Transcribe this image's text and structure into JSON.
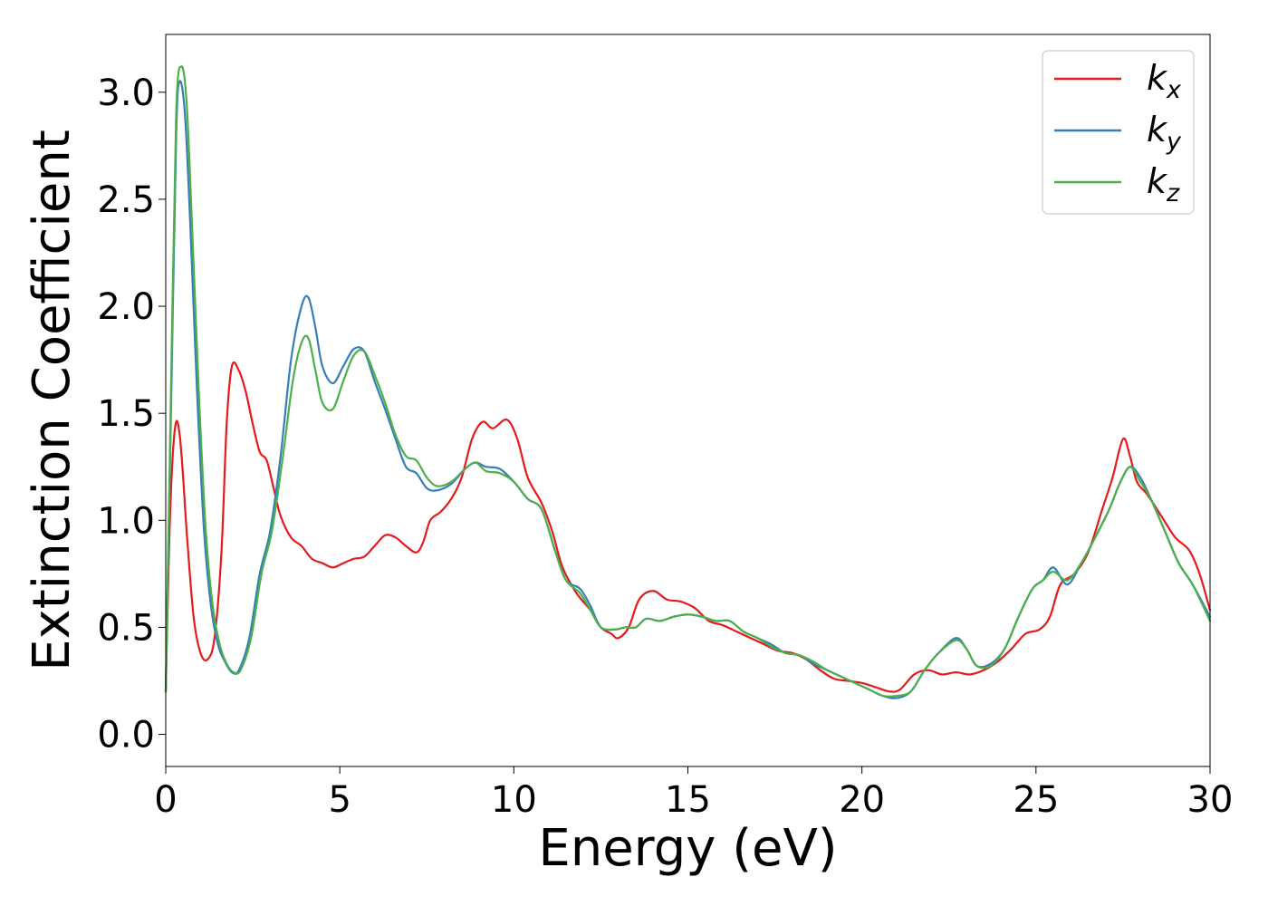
{
  "chart_data": {
    "type": "line",
    "xlabel": "Energy (eV)",
    "ylabel": "Extinction Coefficient",
    "xlim": [
      0,
      30
    ],
    "ylim": [
      -0.15,
      3.27
    ],
    "xticks": [
      0,
      5,
      10,
      15,
      20,
      25,
      30
    ],
    "xtick_labels": [
      "0",
      "5",
      "10",
      "15",
      "20",
      "25",
      "30"
    ],
    "yticks": [
      0.0,
      0.5,
      1.0,
      1.5,
      2.0,
      2.5,
      3.0
    ],
    "ytick_labels": [
      "0.0",
      "0.5",
      "1.0",
      "1.5",
      "2.0",
      "2.5",
      "3.0"
    ],
    "grid": false,
    "legend_position": "top-right",
    "series": [
      {
        "name": "k_x",
        "label_base": "k",
        "label_sub": "x",
        "color": "#e41a1c",
        "points": [
          [
            0,
            0.2
          ],
          [
            0.1,
            0.9
          ],
          [
            0.2,
            1.3
          ],
          [
            0.3,
            1.46
          ],
          [
            0.4,
            1.4
          ],
          [
            0.5,
            1.2
          ],
          [
            0.6,
            0.95
          ],
          [
            0.8,
            0.55
          ],
          [
            1.0,
            0.38
          ],
          [
            1.2,
            0.35
          ],
          [
            1.4,
            0.45
          ],
          [
            1.6,
            0.85
          ],
          [
            1.75,
            1.45
          ],
          [
            1.9,
            1.72
          ],
          [
            2.1,
            1.7
          ],
          [
            2.3,
            1.6
          ],
          [
            2.5,
            1.45
          ],
          [
            2.7,
            1.32
          ],
          [
            2.9,
            1.28
          ],
          [
            3.1,
            1.15
          ],
          [
            3.3,
            1.02
          ],
          [
            3.6,
            0.92
          ],
          [
            3.9,
            0.88
          ],
          [
            4.2,
            0.82
          ],
          [
            4.5,
            0.8
          ],
          [
            4.8,
            0.78
          ],
          [
            5.1,
            0.8
          ],
          [
            5.4,
            0.82
          ],
          [
            5.7,
            0.83
          ],
          [
            6.0,
            0.88
          ],
          [
            6.3,
            0.93
          ],
          [
            6.6,
            0.92
          ],
          [
            6.9,
            0.88
          ],
          [
            7.2,
            0.85
          ],
          [
            7.4,
            0.9
          ],
          [
            7.6,
            1.0
          ],
          [
            7.9,
            1.04
          ],
          [
            8.2,
            1.1
          ],
          [
            8.5,
            1.2
          ],
          [
            8.8,
            1.38
          ],
          [
            9.1,
            1.46
          ],
          [
            9.4,
            1.43
          ],
          [
            9.8,
            1.47
          ],
          [
            10.1,
            1.38
          ],
          [
            10.4,
            1.2
          ],
          [
            10.8,
            1.08
          ],
          [
            11.1,
            0.95
          ],
          [
            11.4,
            0.78
          ],
          [
            11.8,
            0.66
          ],
          [
            12.2,
            0.58
          ],
          [
            12.5,
            0.5
          ],
          [
            12.8,
            0.47
          ],
          [
            13.0,
            0.45
          ],
          [
            13.3,
            0.5
          ],
          [
            13.6,
            0.63
          ],
          [
            14.0,
            0.67
          ],
          [
            14.4,
            0.63
          ],
          [
            14.8,
            0.62
          ],
          [
            15.2,
            0.59
          ],
          [
            15.6,
            0.53
          ],
          [
            16.0,
            0.51
          ],
          [
            16.4,
            0.48
          ],
          [
            16.8,
            0.45
          ],
          [
            17.2,
            0.42
          ],
          [
            17.6,
            0.39
          ],
          [
            18.0,
            0.38
          ],
          [
            18.4,
            0.35
          ],
          [
            18.8,
            0.3
          ],
          [
            19.2,
            0.26
          ],
          [
            19.6,
            0.25
          ],
          [
            20.0,
            0.24
          ],
          [
            20.4,
            0.22
          ],
          [
            20.8,
            0.2
          ],
          [
            21.1,
            0.21
          ],
          [
            21.5,
            0.28
          ],
          [
            21.9,
            0.3
          ],
          [
            22.3,
            0.28
          ],
          [
            22.7,
            0.29
          ],
          [
            23.1,
            0.28
          ],
          [
            23.5,
            0.3
          ],
          [
            23.9,
            0.34
          ],
          [
            24.3,
            0.4
          ],
          [
            24.7,
            0.47
          ],
          [
            25.1,
            0.49
          ],
          [
            25.4,
            0.55
          ],
          [
            25.7,
            0.7
          ],
          [
            26.1,
            0.75
          ],
          [
            26.5,
            0.85
          ],
          [
            26.9,
            1.05
          ],
          [
            27.2,
            1.2
          ],
          [
            27.5,
            1.38
          ],
          [
            27.7,
            1.3
          ],
          [
            27.9,
            1.18
          ],
          [
            28.2,
            1.12
          ],
          [
            28.6,
            1.02
          ],
          [
            29.0,
            0.92
          ],
          [
            29.4,
            0.86
          ],
          [
            29.7,
            0.75
          ],
          [
            30.0,
            0.58
          ]
        ]
      },
      {
        "name": "k_y",
        "label_base": "k",
        "label_sub": "y",
        "color": "#377eb8",
        "points": [
          [
            0,
            0.2
          ],
          [
            0.15,
            1.5
          ],
          [
            0.3,
            2.8
          ],
          [
            0.4,
            3.05
          ],
          [
            0.55,
            2.9
          ],
          [
            0.7,
            2.4
          ],
          [
            0.9,
            1.6
          ],
          [
            1.1,
            0.95
          ],
          [
            1.3,
            0.6
          ],
          [
            1.5,
            0.42
          ],
          [
            1.7,
            0.34
          ],
          [
            1.9,
            0.29
          ],
          [
            2.1,
            0.3
          ],
          [
            2.4,
            0.45
          ],
          [
            2.7,
            0.75
          ],
          [
            3.0,
            0.95
          ],
          [
            3.3,
            1.3
          ],
          [
            3.6,
            1.75
          ],
          [
            3.9,
            2.0
          ],
          [
            4.1,
            2.04
          ],
          [
            4.3,
            1.9
          ],
          [
            4.5,
            1.72
          ],
          [
            4.8,
            1.64
          ],
          [
            5.1,
            1.72
          ],
          [
            5.4,
            1.8
          ],
          [
            5.7,
            1.79
          ],
          [
            6.0,
            1.65
          ],
          [
            6.3,
            1.52
          ],
          [
            6.6,
            1.38
          ],
          [
            6.9,
            1.25
          ],
          [
            7.2,
            1.22
          ],
          [
            7.5,
            1.15
          ],
          [
            7.8,
            1.14
          ],
          [
            8.2,
            1.17
          ],
          [
            8.6,
            1.24
          ],
          [
            8.9,
            1.27
          ],
          [
            9.2,
            1.25
          ],
          [
            9.6,
            1.24
          ],
          [
            10.0,
            1.18
          ],
          [
            10.4,
            1.1
          ],
          [
            10.8,
            1.05
          ],
          [
            11.2,
            0.85
          ],
          [
            11.5,
            0.72
          ],
          [
            11.9,
            0.68
          ],
          [
            12.2,
            0.6
          ],
          [
            12.5,
            0.5
          ],
          [
            12.9,
            0.49
          ],
          [
            13.2,
            0.5
          ],
          [
            13.5,
            0.5
          ],
          [
            13.8,
            0.54
          ],
          [
            14.2,
            0.53
          ],
          [
            14.6,
            0.55
          ],
          [
            15.0,
            0.56
          ],
          [
            15.4,
            0.55
          ],
          [
            15.8,
            0.53
          ],
          [
            16.2,
            0.53
          ],
          [
            16.6,
            0.48
          ],
          [
            17.0,
            0.45
          ],
          [
            17.4,
            0.42
          ],
          [
            17.8,
            0.38
          ],
          [
            18.2,
            0.37
          ],
          [
            18.6,
            0.33
          ],
          [
            19.0,
            0.3
          ],
          [
            19.4,
            0.27
          ],
          [
            19.8,
            0.24
          ],
          [
            20.2,
            0.21
          ],
          [
            20.6,
            0.18
          ],
          [
            21.0,
            0.17
          ],
          [
            21.4,
            0.2
          ],
          [
            21.8,
            0.3
          ],
          [
            22.2,
            0.38
          ],
          [
            22.7,
            0.45
          ],
          [
            23.0,
            0.4
          ],
          [
            23.3,
            0.32
          ],
          [
            23.7,
            0.33
          ],
          [
            24.1,
            0.4
          ],
          [
            24.5,
            0.55
          ],
          [
            24.9,
            0.68
          ],
          [
            25.2,
            0.72
          ],
          [
            25.5,
            0.78
          ],
          [
            25.9,
            0.7
          ],
          [
            26.3,
            0.8
          ],
          [
            26.7,
            0.92
          ],
          [
            27.1,
            1.05
          ],
          [
            27.4,
            1.17
          ],
          [
            27.7,
            1.25
          ],
          [
            28.0,
            1.2
          ],
          [
            28.3,
            1.1
          ],
          [
            28.7,
            0.95
          ],
          [
            29.1,
            0.8
          ],
          [
            29.5,
            0.7
          ],
          [
            30.0,
            0.55
          ]
        ]
      },
      {
        "name": "k_z",
        "label_base": "k",
        "label_sub": "z",
        "color": "#4daf4a",
        "points": [
          [
            0,
            0.2
          ],
          [
            0.15,
            1.6
          ],
          [
            0.3,
            2.9
          ],
          [
            0.45,
            3.12
          ],
          [
            0.6,
            2.95
          ],
          [
            0.75,
            2.4
          ],
          [
            0.95,
            1.6
          ],
          [
            1.15,
            0.95
          ],
          [
            1.35,
            0.6
          ],
          [
            1.55,
            0.42
          ],
          [
            1.75,
            0.33
          ],
          [
            1.95,
            0.29
          ],
          [
            2.15,
            0.3
          ],
          [
            2.45,
            0.45
          ],
          [
            2.75,
            0.75
          ],
          [
            3.05,
            0.95
          ],
          [
            3.35,
            1.28
          ],
          [
            3.65,
            1.65
          ],
          [
            3.9,
            1.83
          ],
          [
            4.1,
            1.85
          ],
          [
            4.3,
            1.7
          ],
          [
            4.5,
            1.55
          ],
          [
            4.8,
            1.52
          ],
          [
            5.1,
            1.65
          ],
          [
            5.4,
            1.77
          ],
          [
            5.7,
            1.79
          ],
          [
            6.0,
            1.68
          ],
          [
            6.3,
            1.55
          ],
          [
            6.6,
            1.4
          ],
          [
            6.9,
            1.3
          ],
          [
            7.2,
            1.28
          ],
          [
            7.5,
            1.2
          ],
          [
            7.8,
            1.16
          ],
          [
            8.2,
            1.18
          ],
          [
            8.6,
            1.24
          ],
          [
            8.9,
            1.27
          ],
          [
            9.2,
            1.23
          ],
          [
            9.6,
            1.22
          ],
          [
            10.0,
            1.18
          ],
          [
            10.4,
            1.1
          ],
          [
            10.8,
            1.05
          ],
          [
            11.2,
            0.85
          ],
          [
            11.5,
            0.72
          ],
          [
            11.9,
            0.66
          ],
          [
            12.2,
            0.58
          ],
          [
            12.5,
            0.5
          ],
          [
            12.9,
            0.49
          ],
          [
            13.2,
            0.5
          ],
          [
            13.5,
            0.5
          ],
          [
            13.8,
            0.54
          ],
          [
            14.2,
            0.53
          ],
          [
            14.6,
            0.55
          ],
          [
            15.0,
            0.56
          ],
          [
            15.4,
            0.55
          ],
          [
            15.8,
            0.53
          ],
          [
            16.2,
            0.53
          ],
          [
            16.6,
            0.48
          ],
          [
            17.0,
            0.45
          ],
          [
            17.4,
            0.41
          ],
          [
            17.8,
            0.38
          ],
          [
            18.2,
            0.37
          ],
          [
            18.6,
            0.34
          ],
          [
            19.0,
            0.3
          ],
          [
            19.4,
            0.27
          ],
          [
            19.8,
            0.24
          ],
          [
            20.2,
            0.21
          ],
          [
            20.6,
            0.18
          ],
          [
            21.0,
            0.18
          ],
          [
            21.4,
            0.2
          ],
          [
            21.8,
            0.3
          ],
          [
            22.2,
            0.38
          ],
          [
            22.7,
            0.44
          ],
          [
            23.0,
            0.4
          ],
          [
            23.3,
            0.32
          ],
          [
            23.7,
            0.32
          ],
          [
            24.1,
            0.4
          ],
          [
            24.5,
            0.55
          ],
          [
            24.9,
            0.68
          ],
          [
            25.2,
            0.72
          ],
          [
            25.5,
            0.76
          ],
          [
            25.9,
            0.72
          ],
          [
            26.3,
            0.8
          ],
          [
            26.7,
            0.92
          ],
          [
            27.1,
            1.05
          ],
          [
            27.4,
            1.17
          ],
          [
            27.7,
            1.25
          ],
          [
            28.0,
            1.18
          ],
          [
            28.3,
            1.1
          ],
          [
            28.7,
            0.95
          ],
          [
            29.1,
            0.8
          ],
          [
            29.5,
            0.7
          ],
          [
            30.0,
            0.53
          ]
        ]
      }
    ]
  }
}
